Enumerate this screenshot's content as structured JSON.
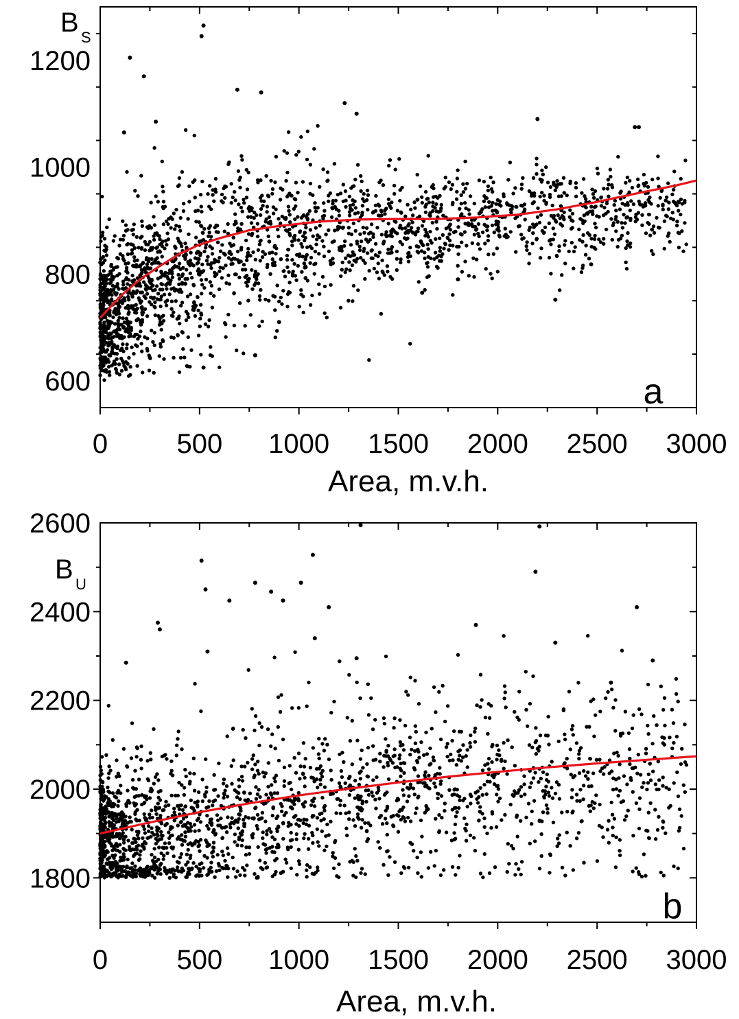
{
  "chart_data": [
    {
      "type": "scatter",
      "panel_label": "a",
      "ylabel": "B",
      "ylabel_sub": "S",
      "xlabel": "Area, m.v.h.",
      "xlim": [
        0,
        3000
      ],
      "ylim": [
        550,
        1300
      ],
      "xticks": [
        0,
        500,
        1000,
        1500,
        2000,
        2500,
        3000
      ],
      "yticks": [
        600,
        800,
        1000,
        1200
      ],
      "grid": false,
      "scatter_color": "#000000",
      "fit_color": "#e8141c",
      "cloud": {
        "count": 2300,
        "x_min": 0,
        "x_max": 2950,
        "center": [
          [
            0,
            700
          ],
          [
            150,
            760
          ],
          [
            300,
            800
          ],
          [
            500,
            830
          ],
          [
            750,
            860
          ],
          [
            1000,
            875
          ],
          [
            1500,
            885
          ],
          [
            2000,
            900
          ],
          [
            2500,
            915
          ],
          [
            3000,
            930
          ]
        ],
        "spread": [
          [
            0,
            70
          ],
          [
            500,
            85
          ],
          [
            1000,
            65
          ],
          [
            2000,
            45
          ],
          [
            3000,
            40
          ]
        ],
        "y_min": 600,
        "y_max": 1130
      },
      "outliers": [
        {
          "x": 520,
          "y": 1265
        },
        {
          "x": 510,
          "y": 1245
        },
        {
          "x": 150,
          "y": 1205
        },
        {
          "x": 220,
          "y": 1170
        },
        {
          "x": 690,
          "y": 1145
        },
        {
          "x": 810,
          "y": 1140
        },
        {
          "x": 1230,
          "y": 1120
        },
        {
          "x": 1290,
          "y": 1100
        },
        {
          "x": 2200,
          "y": 1090
        },
        {
          "x": 2690,
          "y": 1075
        },
        {
          "x": 2710,
          "y": 1075
        },
        {
          "x": 280,
          "y": 1085
        },
        {
          "x": 520,
          "y": 625
        },
        {
          "x": 780,
          "y": 648
        },
        {
          "x": 900,
          "y": 710
        },
        {
          "x": 2290,
          "y": 752
        },
        {
          "x": 2470,
          "y": 818
        },
        {
          "x": 1620,
          "y": 765
        },
        {
          "x": 1800,
          "y": 790
        },
        {
          "x": 120,
          "y": 1065
        }
      ],
      "fit": {
        "x": [
          0,
          100,
          200,
          300,
          400,
          500,
          600,
          700,
          750,
          900,
          1100,
          1300,
          1500,
          1700,
          1900,
          2100,
          2300,
          2500,
          2700,
          2900,
          3000
        ],
        "y": [
          718,
          758,
          790,
          815,
          838,
          855,
          867,
          877,
          882,
          890,
          898,
          902,
          903,
          903,
          906,
          911,
          921,
          935,
          951,
          966,
          975
        ]
      }
    },
    {
      "type": "scatter",
      "panel_label": "b",
      "ylabel": "B",
      "ylabel_sub": "U",
      "xlabel": "Area, m.v.h.",
      "xlim": [
        0,
        3000
      ],
      "ylim": [
        1700,
        2600
      ],
      "xticks": [
        0,
        500,
        1000,
        1500,
        2000,
        2500,
        3000
      ],
      "yticks": [
        1800,
        2000,
        2200,
        2400,
        2600
      ],
      "grid": false,
      "scatter_color": "#000000",
      "fit_color": "#e8141c",
      "cloud": {
        "count": 2100,
        "x_min": 0,
        "x_max": 2950,
        "center": [
          [
            0,
            1880
          ],
          [
            500,
            1910
          ],
          [
            1000,
            1960
          ],
          [
            1500,
            1990
          ],
          [
            2000,
            2010
          ],
          [
            2500,
            2020
          ],
          [
            3000,
            2030
          ]
        ],
        "spread": [
          [
            0,
            80
          ],
          [
            500,
            95
          ],
          [
            1000,
            105
          ],
          [
            2000,
            110
          ],
          [
            3000,
            110
          ]
        ],
        "y_min": 1800,
        "y_max": 2350
      },
      "outliers": [
        {
          "x": 1310,
          "y": 2595
        },
        {
          "x": 2210,
          "y": 2592
        },
        {
          "x": 1070,
          "y": 2528
        },
        {
          "x": 510,
          "y": 2515
        },
        {
          "x": 2190,
          "y": 2490
        },
        {
          "x": 780,
          "y": 2465
        },
        {
          "x": 860,
          "y": 2445
        },
        {
          "x": 1010,
          "y": 2465
        },
        {
          "x": 530,
          "y": 2450
        },
        {
          "x": 920,
          "y": 2425
        },
        {
          "x": 650,
          "y": 2425
        },
        {
          "x": 1150,
          "y": 2410
        },
        {
          "x": 2700,
          "y": 2410
        },
        {
          "x": 290,
          "y": 2375
        },
        {
          "x": 300,
          "y": 2360
        },
        {
          "x": 1890,
          "y": 2370
        },
        {
          "x": 2290,
          "y": 2330
        },
        {
          "x": 1080,
          "y": 2340
        },
        {
          "x": 540,
          "y": 2310
        },
        {
          "x": 2780,
          "y": 2290
        },
        {
          "x": 1290,
          "y": 2295
        },
        {
          "x": 2570,
          "y": 2240
        },
        {
          "x": 130,
          "y": 2285
        }
      ],
      "fit": {
        "x": [
          0,
          250,
          500,
          750,
          1000,
          1250,
          1500,
          1750,
          2000,
          2250,
          2500,
          2750,
          3000
        ],
        "y": [
          1900,
          1925,
          1948,
          1968,
          1986,
          2001,
          2015,
          2028,
          2039,
          2049,
          2058,
          2066,
          2074
        ]
      }
    }
  ]
}
